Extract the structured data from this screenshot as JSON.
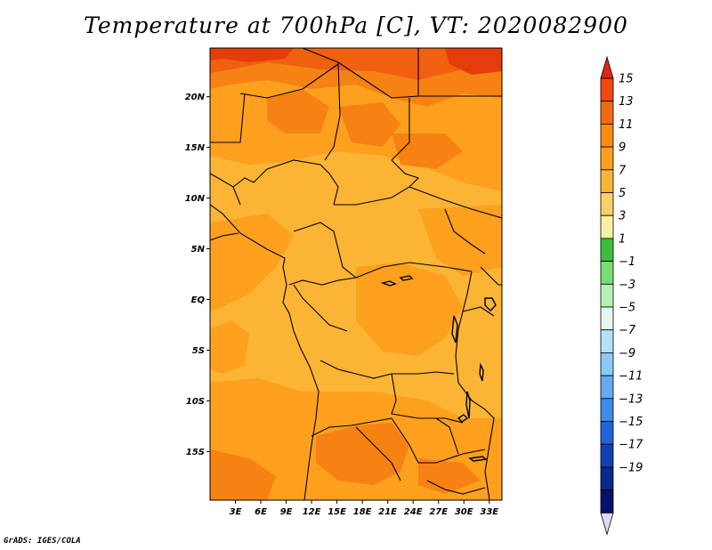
{
  "title": "Temperature at 700hPa [C], VT: 2020082900",
  "credit": "GrADS: IGES/COLA",
  "map": {
    "lon_range": [
      0,
      34.5
    ],
    "lat_range": [
      -19.8,
      24.8
    ],
    "lat_ticks": [
      {
        "value": 20,
        "label": "20N"
      },
      {
        "value": 15,
        "label": "15N"
      },
      {
        "value": 10,
        "label": "10N"
      },
      {
        "value": 5,
        "label": "5N"
      },
      {
        "value": 0,
        "label": "EQ"
      },
      {
        "value": -5,
        "label": "5S"
      },
      {
        "value": -10,
        "label": "10S"
      },
      {
        "value": -15,
        "label": "15S"
      }
    ],
    "lon_ticks": [
      {
        "value": 3,
        "label": "3E"
      },
      {
        "value": 6,
        "label": "6E"
      },
      {
        "value": 9,
        "label": "9E"
      },
      {
        "value": 12,
        "label": "12E"
      },
      {
        "value": 15,
        "label": "15E"
      },
      {
        "value": 18,
        "label": "18E"
      },
      {
        "value": 21,
        "label": "21E"
      },
      {
        "value": 24,
        "label": "24E"
      },
      {
        "value": 27,
        "label": "27E"
      },
      {
        "value": 30,
        "label": "30E"
      },
      {
        "value": 33,
        "label": "33E"
      }
    ],
    "colors": {
      "base": "#fcb434",
      "warm": "#fca01e",
      "hot": "#f78214",
      "hotter": "#f06010",
      "hottest": "#e63c0c",
      "border": "#000000"
    }
  },
  "colorbar": {
    "labels": [
      "15",
      "13",
      "11",
      "9",
      "7",
      "5",
      "3",
      "1",
      "−1",
      "−3",
      "−5",
      "−7",
      "−9",
      "−11",
      "−13",
      "−15",
      "−17",
      "−19"
    ],
    "top_triangle_color": "#e02810",
    "bottom_triangle_color": "#dcdcf8",
    "segments": [
      "#f04810",
      "#f06a12",
      "#f88c14",
      "#fca01e",
      "#fcb434",
      "#fcd068",
      "#fcf0a0",
      "#3cbe3c",
      "#78dc78",
      "#b4f0b4",
      "#e0f8f0",
      "#b4e0f8",
      "#8cc8f8",
      "#64aaf0",
      "#3c8ce8",
      "#2064d8",
      "#1040b4",
      "#0c2888",
      "#08106c"
    ]
  }
}
